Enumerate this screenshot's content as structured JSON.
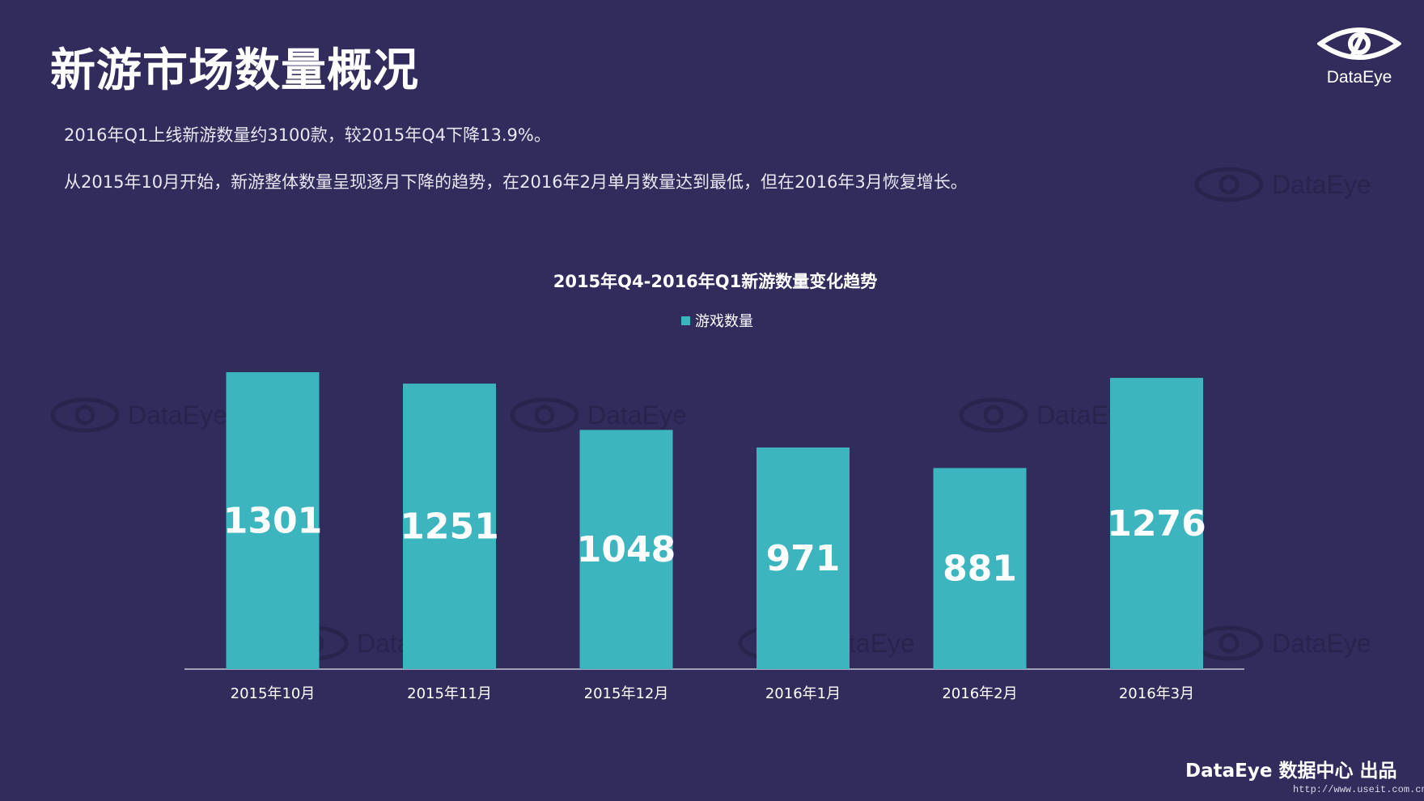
{
  "page": {
    "title": "新游市场数量概况",
    "brand": "DataEye",
    "paragraphs": [
      "2016年Q1上线新游数量约3100款，较2015年Q4下降13.9%。",
      "从2015年10月开始，新游整体数量呈现逐月下降的趋势，在2016年2月单月数量达到最低，但在2016年3月恢复增长。"
    ],
    "footer": "DataEye 数据中心 出品",
    "watermark": "DataEye",
    "site_mark": "http://www.useit.com.cn"
  },
  "chart_data": {
    "type": "bar",
    "title": "2015年Q4-2016年Q1新游数量变化趋势",
    "categories": [
      "2015年10月",
      "2015年11月",
      "2015年12月",
      "2016年1月",
      "2016年2月",
      "2016年3月"
    ],
    "series": [
      {
        "name": "游戏数量",
        "values": [
          1301,
          1251,
          1048,
          971,
          881,
          1276
        ]
      }
    ],
    "ylim": [
      0,
      1301
    ],
    "grid": false,
    "legend_position": "top-center",
    "colors": {
      "bar": "#3db5be",
      "axis": "#c8c6d6",
      "background": "#322c5c"
    }
  }
}
